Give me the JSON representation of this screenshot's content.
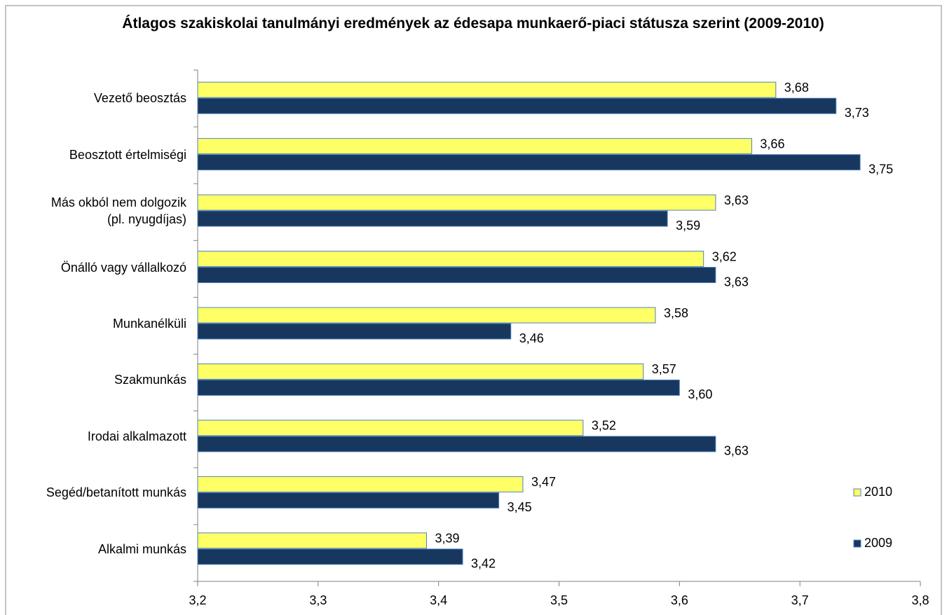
{
  "chart_data": {
    "type": "bar",
    "orientation": "horizontal",
    "title": "Átlagos szakiskolai tanulmányi eredmények az édesapa munkaerő-piaci státusza szerint (2009-2010)",
    "categories": [
      "Vezető beosztás",
      "Beosztott értelmiségi",
      "Más okból nem dolgozik\n(pl. nyugdíjas)",
      "Önálló vagy vállalkozó",
      "Munkanélküli",
      "Szakmunkás",
      "Irodai alkalmazott",
      "Segéd/betanított munkás",
      "Alkalmi munkás"
    ],
    "series": [
      {
        "name": "2010",
        "color": "#ffff66",
        "values": [
          3.68,
          3.66,
          3.63,
          3.62,
          3.58,
          3.57,
          3.52,
          3.47,
          3.39
        ],
        "value_labels": [
          "3,68",
          "3,66",
          "3,63",
          "3,62",
          "3,58",
          "3,57",
          "3,52",
          "3,47",
          "3,39"
        ]
      },
      {
        "name": "2009",
        "color": "#17375e",
        "values": [
          3.73,
          3.75,
          3.59,
          3.63,
          3.46,
          3.6,
          3.63,
          3.45,
          3.42
        ],
        "value_labels": [
          "3,73",
          "3,75",
          "3,59",
          "3,63",
          "3,46",
          "3,60",
          "3,63",
          "3,45",
          "3,42"
        ]
      }
    ],
    "xlim": [
      3.2,
      3.8
    ],
    "xticks": [
      {
        "value": 3.2,
        "label": "3,2"
      },
      {
        "value": 3.3,
        "label": "3,3"
      },
      {
        "value": 3.4,
        "label": "3,4"
      },
      {
        "value": 3.5,
        "label": "3,5"
      },
      {
        "value": 3.6,
        "label": "3,6"
      },
      {
        "value": 3.7,
        "label": "3,7"
      },
      {
        "value": 3.8,
        "label": "3,8"
      }
    ],
    "legend": "right"
  }
}
